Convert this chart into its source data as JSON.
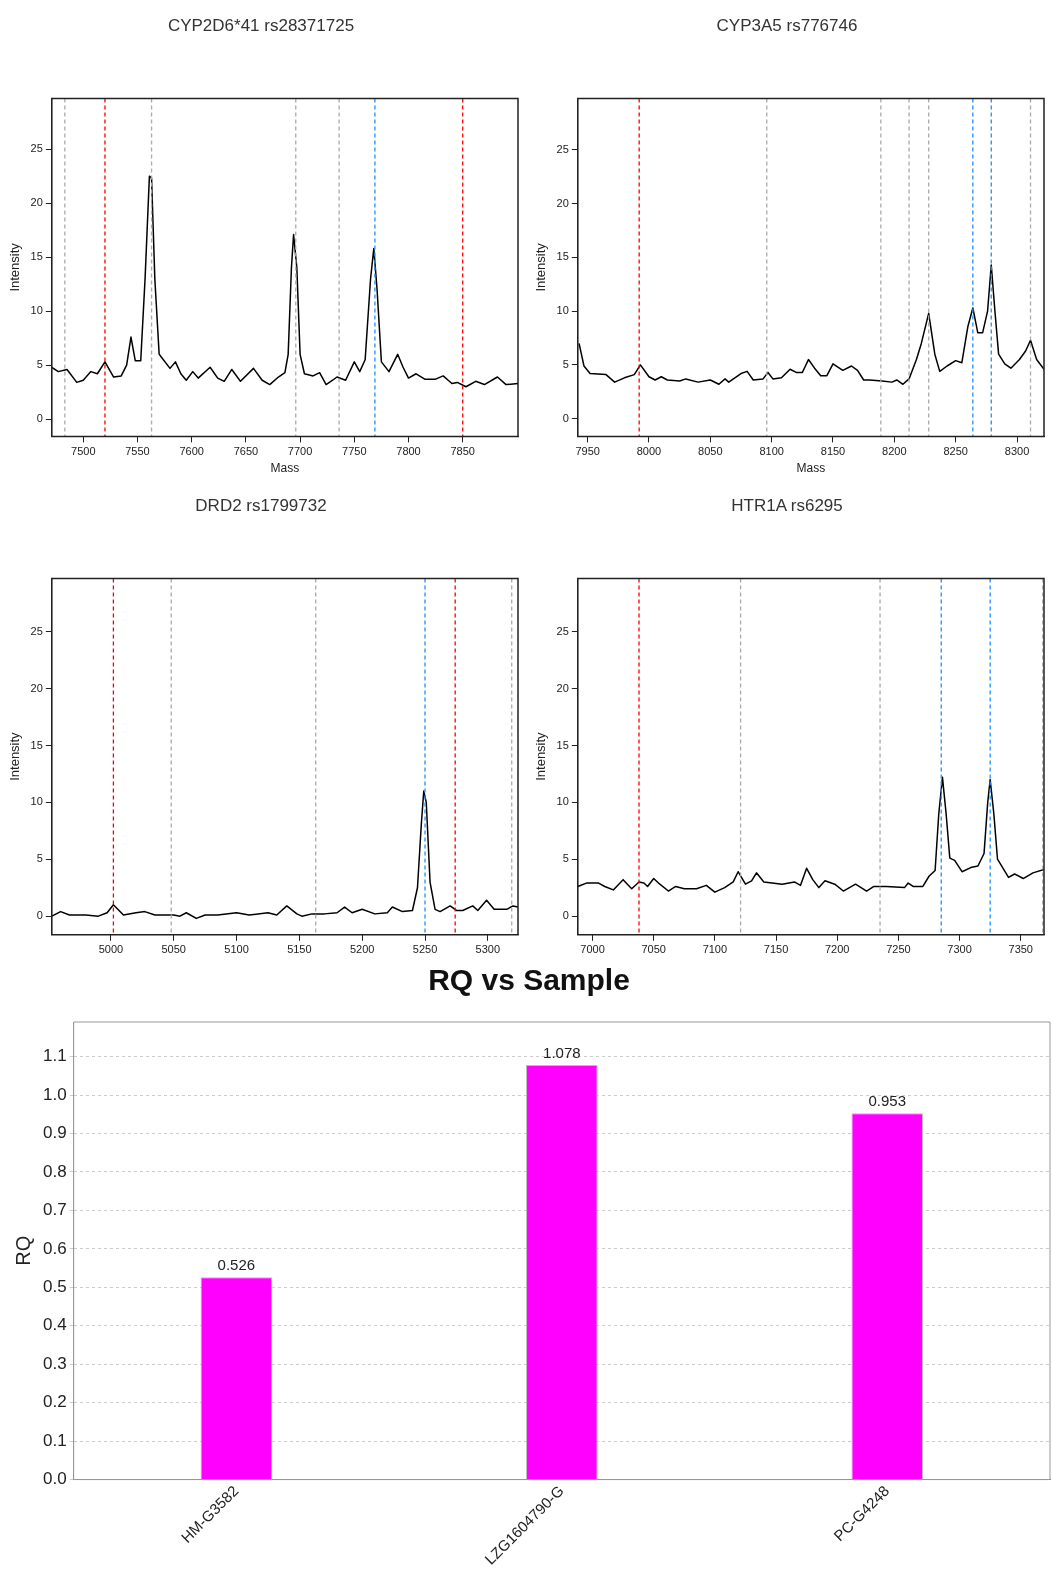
{
  "chart_data": [
    {
      "type": "line",
      "title": "CYP2D6*41 rs28371725",
      "xlabel": "Mass",
      "ylabel": "Intensity",
      "xlim": [
        7471,
        7901
      ],
      "xticks": [
        7500,
        7550,
        7600,
        7650,
        7700,
        7750,
        7800,
        7850
      ],
      "ylim": [
        -1.6,
        29.7
      ],
      "yticks": [
        0,
        5,
        10,
        15,
        20,
        25
      ],
      "grid": false,
      "marker": "none",
      "color": "#000000",
      "x": [
        7471,
        7477,
        7485,
        7494,
        7500,
        7507,
        7513,
        7520,
        7528,
        7535,
        7540,
        7544,
        7548,
        7553,
        7557,
        7561,
        7563,
        7566,
        7570,
        7580,
        7585,
        7590,
        7595,
        7601,
        7606,
        7617,
        7624,
        7630,
        7637,
        7645,
        7657,
        7665,
        7672,
        7680,
        7686,
        7689,
        7692,
        7694,
        7697,
        7700,
        7704,
        7712,
        7718,
        7724,
        7730,
        7734,
        7742,
        7750,
        7755,
        7760,
        7765,
        7768,
        7771,
        7775,
        7782,
        7790,
        7795,
        7800,
        7807,
        7815,
        7825,
        7832,
        7840,
        7845,
        7853,
        7862,
        7870,
        7882,
        7890,
        7901
      ],
      "values": [
        4.8,
        4.4,
        4.6,
        3.4,
        3.6,
        4.4,
        4.2,
        5.3,
        3.9,
        4.0,
        5.0,
        7.6,
        5.4,
        5.4,
        13,
        22.5,
        22.3,
        13,
        6,
        4.7,
        5.3,
        4.2,
        3.6,
        4.4,
        3.8,
        4.8,
        3.8,
        3.5,
        4.6,
        3.5,
        4.7,
        3.6,
        3.2,
        3.9,
        4.3,
        6,
        14,
        17.1,
        14,
        6,
        4.2,
        4.0,
        4.3,
        3.2,
        3.6,
        3.9,
        3.6,
        5.3,
        4.4,
        5.5,
        13,
        15.8,
        12,
        5.3,
        4.4,
        6.0,
        4.8,
        3.8,
        4.2,
        3.7,
        3.7,
        4.0,
        3.3,
        3.4,
        3.0,
        3.5,
        3.2,
        3.9,
        3.2,
        3.3
      ],
      "ref_lines": [
        {
          "axis": "x",
          "value": 7483,
          "color": "#aaaaaa",
          "line_style": "dashed"
        },
        {
          "axis": "x",
          "value": 7520,
          "color": "#ff0000",
          "line_style": "dashed"
        },
        {
          "axis": "x",
          "value": 7563,
          "color": "#aaaaaa",
          "line_style": "dashed"
        },
        {
          "axis": "x",
          "value": 7696,
          "color": "#aaaaaa",
          "line_style": "dashed"
        },
        {
          "axis": "x",
          "value": 7736,
          "color": "#aaaaaa",
          "line_style": "dashed"
        },
        {
          "axis": "x",
          "value": 7769,
          "color": "#1e90ff",
          "line_style": "dashed"
        },
        {
          "axis": "x",
          "value": 7850,
          "color": "#ff0000",
          "line_style": "dashed"
        }
      ]
    },
    {
      "type": "line",
      "title": "CYP3A5 rs776746",
      "xlabel": "Mass",
      "ylabel": "Intensity",
      "xlim": [
        7942,
        8322
      ],
      "xticks": [
        7950,
        8000,
        8050,
        8100,
        8150,
        8200,
        8250,
        8300
      ],
      "ylim": [
        -1.65,
        29.8
      ],
      "yticks": [
        0,
        5,
        10,
        15,
        20,
        25
      ],
      "grid": false,
      "marker": "none",
      "color": "#000000",
      "x": [
        7943,
        7947,
        7952,
        7965,
        7972,
        7980,
        7988,
        7993,
        8000,
        8005,
        8010,
        8015,
        8025,
        8030,
        8040,
        8050,
        8057,
        8062,
        8065,
        8075,
        8080,
        8085,
        8093,
        8097,
        8101,
        8108,
        8115,
        8120,
        8125,
        8130,
        8135,
        8140,
        8145,
        8150,
        8158,
        8165,
        8170,
        8175,
        8180,
        8190,
        8198,
        8202,
        8207,
        8212,
        8218,
        8222,
        8228,
        8233,
        8237,
        8243,
        8250,
        8255,
        8260,
        8264,
        8268,
        8272,
        8276,
        8279,
        8282,
        8285,
        8290,
        8295,
        8302,
        8307,
        8311,
        8316,
        8322
      ],
      "values": [
        7.0,
        4.9,
        4.2,
        4.1,
        3.4,
        3.8,
        4.1,
        5.0,
        3.9,
        3.6,
        3.9,
        3.6,
        3.5,
        3.7,
        3.4,
        3.6,
        3.2,
        3.7,
        3.4,
        4.2,
        4.4,
        3.6,
        3.7,
        4.3,
        3.7,
        3.8,
        4.6,
        4.3,
        4.3,
        5.5,
        4.7,
        4.0,
        4.0,
        5.1,
        4.5,
        4.9,
        4.5,
        3.6,
        3.6,
        3.5,
        3.4,
        3.6,
        3.2,
        3.7,
        5.5,
        7,
        9.8,
        6,
        4.4,
        4.9,
        5.4,
        5.2,
        8.6,
        10.3,
        8.0,
        8.0,
        10,
        14.3,
        10,
        6,
        5.1,
        4.7,
        5.5,
        6.3,
        7.3,
        5.5,
        4.6
      ],
      "ref_lines": [
        {
          "axis": "x",
          "value": 7992,
          "color": "#ff0000",
          "line_style": "dashed"
        },
        {
          "axis": "x",
          "value": 8096,
          "color": "#aaaaaa",
          "line_style": "dashed"
        },
        {
          "axis": "x",
          "value": 8189,
          "color": "#aaaaaa",
          "line_style": "dashed"
        },
        {
          "axis": "x",
          "value": 8212,
          "color": "#aaaaaa",
          "line_style": "dashed"
        },
        {
          "axis": "x",
          "value": 8228,
          "color": "#aaaaaa",
          "line_style": "dashed"
        },
        {
          "axis": "x",
          "value": 8264,
          "color": "#1e90ff",
          "line_style": "dashed"
        },
        {
          "axis": "x",
          "value": 8279,
          "color": "#1e90ff",
          "line_style": "dashed"
        },
        {
          "axis": "x",
          "value": 8311,
          "color": "#aaaaaa",
          "line_style": "dashed"
        }
      ]
    },
    {
      "type": "line",
      "title": "DRD2 rs1799732",
      "ylabel": "Intensity",
      "xlim": [
        4953,
        5324
      ],
      "xticks": [
        5000,
        5050,
        5100,
        5150,
        5200,
        5250,
        5300
      ],
      "ylim": [
        -1.64,
        29.7
      ],
      "yticks": [
        0,
        5,
        10,
        15,
        20,
        25
      ],
      "grid": false,
      "marker": "none",
      "color": "#000000",
      "x": [
        4953,
        4960,
        4967,
        4980,
        4990,
        4997,
        5002,
        5010,
        5020,
        5027,
        5035,
        5050,
        5055,
        5060,
        5068,
        5075,
        5085,
        5100,
        5110,
        5125,
        5132,
        5140,
        5148,
        5152,
        5160,
        5170,
        5180,
        5186,
        5192,
        5200,
        5210,
        5220,
        5224,
        5232,
        5240,
        5244,
        5247,
        5249,
        5251,
        5254,
        5258,
        5262,
        5270,
        5275,
        5280,
        5288,
        5292,
        5299,
        5305,
        5315,
        5320,
        5324
      ],
      "values": [
        0,
        0.4,
        0.1,
        0.1,
        0,
        0.3,
        1.0,
        0.1,
        0.3,
        0.4,
        0.1,
        0.1,
        0,
        0.3,
        -0.2,
        0.1,
        0.1,
        0.3,
        0.1,
        0.3,
        0.1,
        0.9,
        0.2,
        0,
        0.2,
        0.2,
        0.3,
        0.8,
        0.3,
        0.6,
        0.2,
        0.3,
        0.8,
        0.4,
        0.5,
        2.5,
        8,
        11,
        10,
        3,
        0.6,
        0.4,
        0.9,
        0.5,
        0.5,
        0.9,
        0.5,
        1.4,
        0.6,
        0.6,
        0.9,
        0.8
      ],
      "ref_lines": [
        {
          "axis": "x",
          "value": 5002,
          "color": "#ff0000",
          "line_style": "dashed"
        },
        {
          "axis": "x",
          "value": 5048,
          "color": "#aaaaaa",
          "line_style": "dashed"
        },
        {
          "axis": "x",
          "value": 5163,
          "color": "#aaaaaa",
          "line_style": "dashed"
        },
        {
          "axis": "x",
          "value": 5250,
          "color": "#1e90ff",
          "line_style": "dashed"
        },
        {
          "axis": "x",
          "value": 5274,
          "color": "#ff0000",
          "line_style": "dashed"
        },
        {
          "axis": "x",
          "value": 5319,
          "color": "#aaaaaa",
          "line_style": "dashed"
        }
      ]
    },
    {
      "type": "line",
      "title": "HTR1A rs6295",
      "ylabel": "Intensity",
      "xlim": [
        6988,
        7369
      ],
      "xticks": [
        7000,
        7050,
        7100,
        7150,
        7200,
        7250,
        7300,
        7350
      ],
      "ylim": [
        -1.65,
        29.7
      ],
      "yticks": [
        0,
        5,
        10,
        15,
        20,
        25
      ],
      "grid": false,
      "marker": "none",
      "color": "#000000",
      "x": [
        6988,
        6995,
        7005,
        7010,
        7017,
        7025,
        7032,
        7038,
        7042,
        7045,
        7050,
        7055,
        7062,
        7068,
        7075,
        7085,
        7093,
        7100,
        7108,
        7115,
        7119,
        7125,
        7130,
        7134,
        7140,
        7155,
        7165,
        7170,
        7175,
        7180,
        7185,
        7190,
        7198,
        7205,
        7215,
        7224,
        7230,
        7240,
        7255,
        7258,
        7262,
        7270,
        7275,
        7280,
        7283,
        7286,
        7289,
        7292,
        7296,
        7302,
        7310,
        7315,
        7320,
        7323,
        7325,
        7328,
        7331,
        7340,
        7345,
        7352,
        7360,
        7369
      ],
      "values": [
        2.6,
        2.9,
        2.9,
        2.6,
        2.3,
        3.2,
        2.4,
        3.0,
        2.9,
        2.6,
        3.3,
        2.8,
        2.2,
        2.6,
        2.4,
        2.4,
        2.7,
        2.1,
        2.5,
        3.0,
        3.9,
        2.8,
        3.1,
        3.8,
        3.0,
        2.8,
        3.0,
        2.7,
        4.2,
        3.2,
        2.5,
        3.1,
        2.8,
        2.2,
        2.8,
        2.2,
        2.6,
        2.6,
        2.5,
        2.9,
        2.6,
        2.6,
        3.5,
        4.0,
        9,
        12.2,
        9,
        5.1,
        4.9,
        3.9,
        4.3,
        4.4,
        5.5,
        10,
        12,
        9,
        5,
        3.4,
        3.7,
        3.3,
        3.8,
        4.1
      ],
      "ref_lines": [
        {
          "axis": "x",
          "value": 7038,
          "color": "#ff0000",
          "line_style": "dashed"
        },
        {
          "axis": "x",
          "value": 7121,
          "color": "#aaaaaa",
          "line_style": "dashed"
        },
        {
          "axis": "x",
          "value": 7235,
          "color": "#aaaaaa",
          "line_style": "dashed"
        },
        {
          "axis": "x",
          "value": 7285,
          "color": "#1e90ff",
          "line_style": "dashed"
        },
        {
          "axis": "x",
          "value": 7325,
          "color": "#1e90ff",
          "line_style": "dashed"
        },
        {
          "axis": "x",
          "value": 7368,
          "color": "#aaaaaa",
          "line_style": "dashed"
        }
      ]
    },
    {
      "type": "bar",
      "title": "RQ vs Sample",
      "ylabel": "RQ",
      "categories": [
        "HM-G3582",
        "LZG1604790-G",
        "PC-G4248"
      ],
      "values": [
        0.526,
        1.078,
        0.953
      ],
      "color": "#ff00ff",
      "ylim": [
        0,
        1.19
      ],
      "yticks": [
        {
          "value": 0,
          "label": "0.0"
        },
        0.1,
        0.2,
        0.3,
        0.4,
        0.5,
        0.6,
        0.7,
        0.8,
        0.9,
        {
          "value": 1,
          "label": "1.0"
        },
        1.1
      ],
      "grid": "y",
      "data_labels": true
    }
  ]
}
